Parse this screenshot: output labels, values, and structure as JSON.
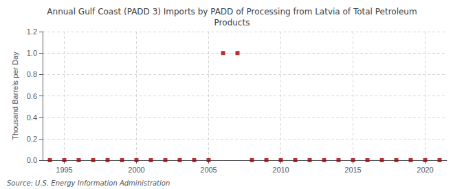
{
  "chart_data": {
    "type": "scatter",
    "title": "Annual Gulf Coast (PADD 3) Imports by PADD of Processing from Latvia of Total Petroleum\nProducts",
    "ylabel": "Thousand Barrels per Day",
    "source": "Source: U.S. Energy Information Administration",
    "x": [
      1994,
      1995,
      1996,
      1997,
      1998,
      1999,
      2000,
      2001,
      2002,
      2003,
      2004,
      2005,
      2006,
      2007,
      2008,
      2009,
      2010,
      2011,
      2012,
      2013,
      2014,
      2015,
      2016,
      2017,
      2018,
      2019,
      2020,
      2021
    ],
    "values": [
      0.0,
      0.0,
      0.0,
      0.0,
      0.0,
      0.0,
      0.0,
      0.0,
      0.0,
      0.0,
      0.0,
      0.0,
      1.0,
      1.0,
      0.0,
      0.0,
      0.0,
      0.0,
      0.0,
      0.0,
      0.0,
      0.0,
      0.0,
      0.0,
      0.0,
      0.0,
      0.0,
      0.0
    ],
    "color": "#aa0000",
    "marker": "square",
    "xlim": [
      1993.5,
      2021.5
    ],
    "xticks": [
      1995,
      2000,
      2005,
      2010,
      2015,
      2020
    ],
    "ylim": [
      0.0,
      1.2
    ],
    "yticks": [
      {
        "value": 0,
        "label": "0.0"
      },
      0.2,
      0.4,
      0.6,
      0.8,
      {
        "value": 1,
        "label": "1.0"
      },
      1.2
    ],
    "grid": true
  }
}
